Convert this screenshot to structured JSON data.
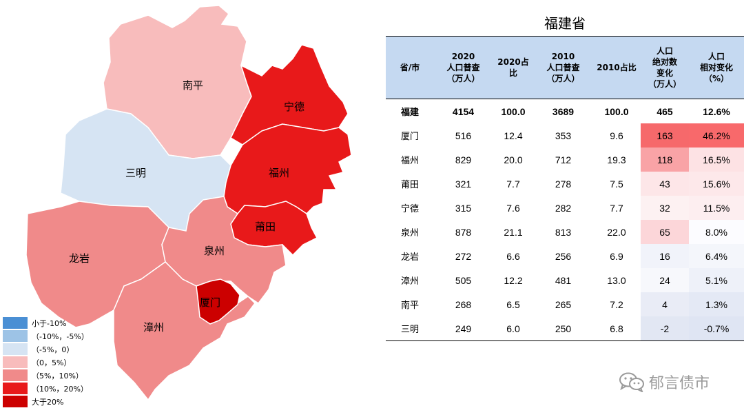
{
  "colors": {
    "lt_m10": "#4a8fd4",
    "m10_m5": "#9dc3e6",
    "m5_0": "#d6e4f3",
    "p0_5": "#f8bcbc",
    "p5_10": "#f08a8a",
    "p10_20": "#e8191a",
    "gt20": "#cc0000",
    "header_bg": "#c5d9f1"
  },
  "map": {
    "regions": [
      {
        "key": "nanping",
        "label": "南平",
        "bucket": "p0_5"
      },
      {
        "key": "sanming",
        "label": "三明",
        "bucket": "m5_0"
      },
      {
        "key": "ningde",
        "label": "宁德",
        "bucket": "p10_20"
      },
      {
        "key": "fuzhou",
        "label": "福州",
        "bucket": "p10_20"
      },
      {
        "key": "putian",
        "label": "莆田",
        "bucket": "p10_20"
      },
      {
        "key": "longyan",
        "label": "龙岩",
        "bucket": "p5_10"
      },
      {
        "key": "quanzhou",
        "label": "泉州",
        "bucket": "p5_10"
      },
      {
        "key": "zhangzhou",
        "label": "漳州",
        "bucket": "p5_10"
      },
      {
        "key": "xiamen",
        "label": "厦门",
        "bucket": "gt20"
      }
    ]
  },
  "legend": [
    {
      "label": "小于-10%",
      "color_key": "lt_m10"
    },
    {
      "label": "（-10%，-5%）",
      "color_key": "m10_m5"
    },
    {
      "label": "（-5%，0）",
      "color_key": "m5_0"
    },
    {
      "label": "（0，5%）",
      "color_key": "p0_5"
    },
    {
      "label": "（5%，10%）",
      "color_key": "p5_10"
    },
    {
      "label": "（10%，20%）",
      "color_key": "p10_20"
    },
    {
      "label": "大于20%",
      "color_key": "gt20"
    }
  ],
  "chart_data": {
    "type": "table",
    "title": "福建省",
    "columns": [
      [
        "省/市"
      ],
      [
        "2020",
        "人口普查",
        "（万人）"
      ],
      [
        "2020占比"
      ],
      [
        "2010",
        "人口普查",
        "（万人）"
      ],
      [
        "2010占比"
      ],
      [
        "人口",
        "绝对数",
        "变化",
        "（万人）"
      ],
      [
        "人口",
        "相对变化",
        "（%）"
      ]
    ],
    "rows": [
      {
        "name": "福建",
        "pop2020": "4154",
        "share2020": "100.0",
        "pop2010": "3689",
        "share2010": "100.0",
        "abs": "465",
        "rel": "12.6%",
        "abs_bg": "",
        "rel_bg": ""
      },
      {
        "name": "厦门",
        "pop2020": "516",
        "share2020": "12.4",
        "pop2010": "353",
        "share2010": "9.6",
        "abs": "163",
        "rel": "46.2%",
        "abs_bg": "#f6696b",
        "rel_bg": "#f8696b"
      },
      {
        "name": "福州",
        "pop2020": "829",
        "share2020": "20.0",
        "pop2010": "712",
        "share2010": "19.3",
        "abs": "118",
        "rel": "16.5%",
        "abs_bg": "#f9a3a6",
        "rel_bg": "#fde2e4"
      },
      {
        "name": "莆田",
        "pop2020": "321",
        "share2020": "7.7",
        "pop2010": "278",
        "share2010": "7.5",
        "abs": "43",
        "rel": "15.6%",
        "abs_bg": "#fde6e8",
        "rel_bg": "#fde8ea"
      },
      {
        "name": "宁德",
        "pop2020": "315",
        "share2020": "7.6",
        "pop2010": "282",
        "share2010": "7.7",
        "abs": "32",
        "rel": "11.5%",
        "abs_bg": "#fdf1f2",
        "rel_bg": "#fdeef0"
      },
      {
        "name": "泉州",
        "pop2020": "878",
        "share2020": "21.1",
        "pop2010": "813",
        "share2010": "22.0",
        "abs": "65",
        "rel": "8.0%",
        "abs_bg": "#fcd6d9",
        "rel_bg": "#fcfcff"
      },
      {
        "name": "龙岩",
        "pop2020": "272",
        "share2020": "6.6",
        "pop2010": "256",
        "share2010": "6.9",
        "abs": "16",
        "rel": "6.4%",
        "abs_bg": "#f1f3fa",
        "rel_bg": "#f4f6fb"
      },
      {
        "name": "漳州",
        "pop2020": "505",
        "share2020": "12.2",
        "pop2010": "481",
        "share2010": "13.0",
        "abs": "24",
        "rel": "5.1%",
        "abs_bg": "#f7f8fc",
        "rel_bg": "#eef1f9"
      },
      {
        "name": "南平",
        "pop2020": "268",
        "share2020": "6.5",
        "pop2010": "265",
        "share2010": "7.2",
        "abs": "4",
        "rel": "1.3%",
        "abs_bg": "#e9ecf6",
        "rel_bg": "#e4e9f5"
      },
      {
        "name": "三明",
        "pop2020": "249",
        "share2020": "6.0",
        "pop2010": "250",
        "share2010": "6.8",
        "abs": "-2",
        "rel": "-0.7%",
        "abs_bg": "#e2e7f3",
        "rel_bg": "#dfe5f3"
      }
    ]
  },
  "watermark": "郁言债市"
}
